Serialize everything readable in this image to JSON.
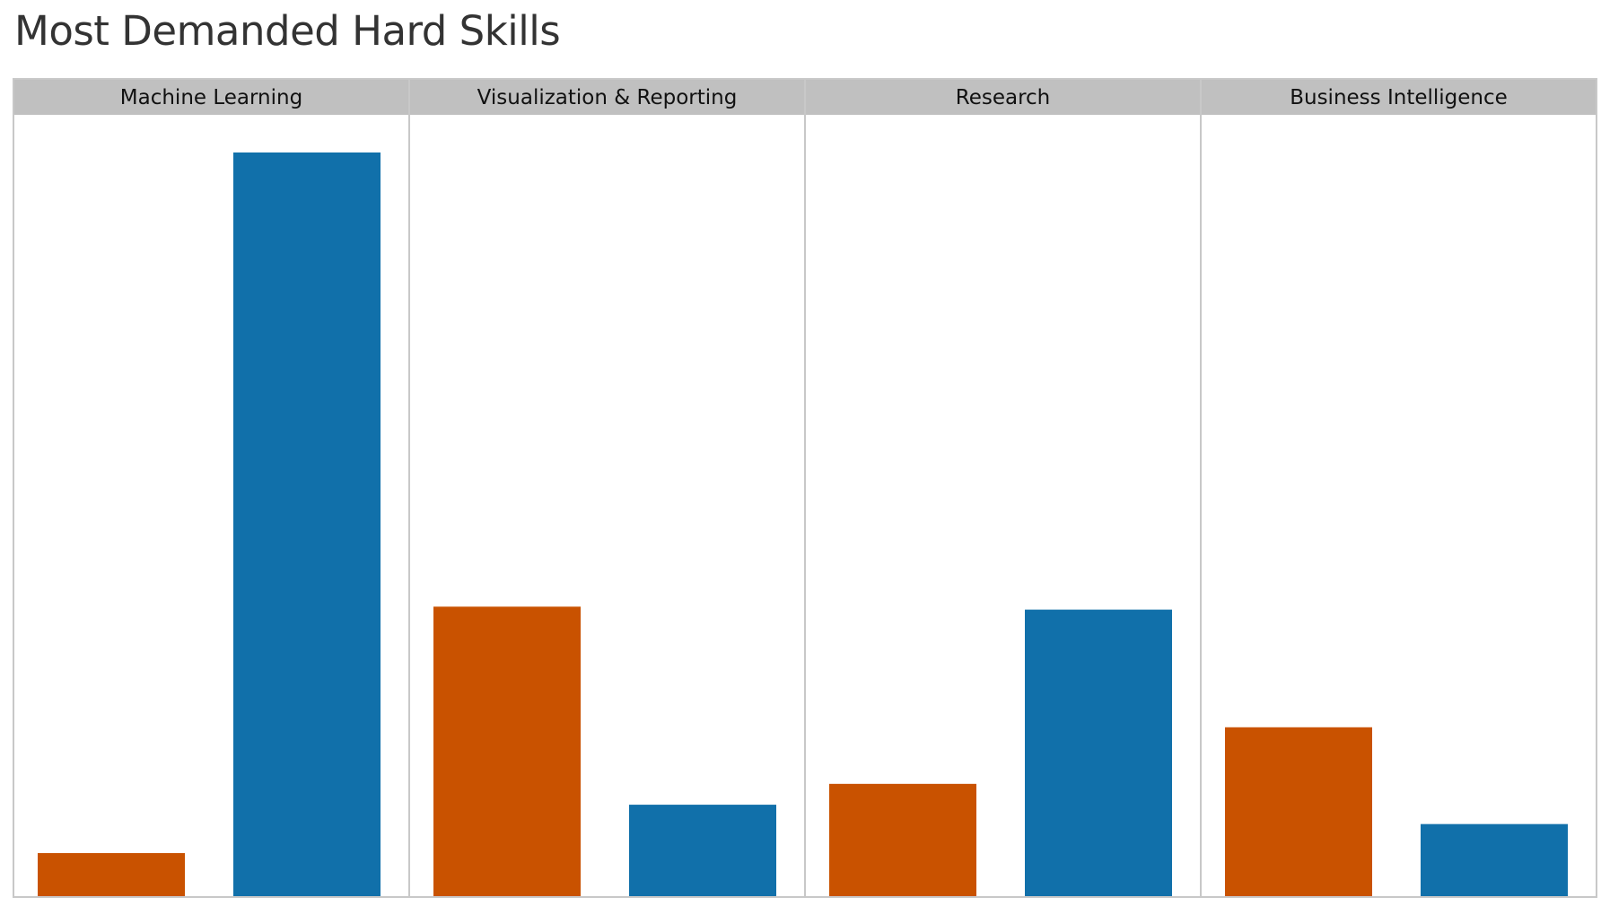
{
  "chart_data": {
    "type": "bar",
    "title": "Most Demanded Hard Skills",
    "xlabel": "",
    "ylabel": "",
    "ylim": [
      0,
      100
    ],
    "grid": false,
    "legend": "none",
    "colors": [
      "#c95200",
      "#1170aa"
    ],
    "header_color": "#c0c0c0",
    "border_color": "#c8c8c8",
    "panels": [
      {
        "category": "Machine Learning",
        "values": [
          5.9,
          100
        ]
      },
      {
        "category": "Visualization & Reporting",
        "values": [
          39,
          12.4
        ]
      },
      {
        "category": "Research",
        "values": [
          15.2,
          38.6
        ]
      },
      {
        "category": "Business Intelligence",
        "values": [
          22.8,
          9.8
        ]
      }
    ]
  }
}
